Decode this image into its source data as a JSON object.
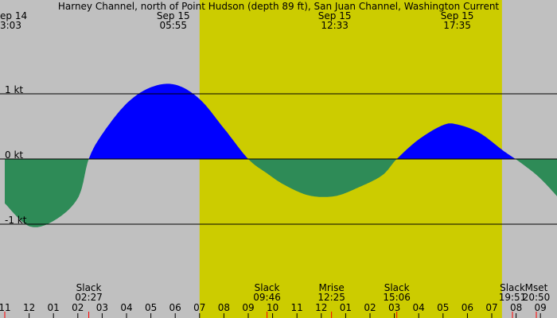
{
  "chart_data": {
    "type": "area",
    "title": "Harney Channel, north of Point Hudson (depth 89 ft), San Juan Channel, Washington Current",
    "xlabel": "",
    "ylabel": "",
    "unit": "kt",
    "x_unit": "hours since Sep 14 11:00",
    "xlim": [
      0,
      22.87
    ],
    "ylim": [
      -2.2,
      1.6
    ],
    "daylight": [
      8.0,
      20.42
    ],
    "y_ticks": [
      {
        "value": 1,
        "label": "1 kt"
      },
      {
        "value": 0,
        "label": "0 kt"
      },
      {
        "value": -1,
        "label": "-1 kt"
      }
    ],
    "x_ticks": [
      "11",
      "12",
      "01",
      "02",
      "03",
      "04",
      "05",
      "06",
      "07",
      "08",
      "09",
      "10",
      "11",
      "12",
      "01",
      "02",
      "03",
      "04",
      "05",
      "06",
      "07",
      "08",
      "09"
    ],
    "series": [
      {
        "x": [
          0,
          1.0,
          2.0,
          3.0,
          3.45,
          4.0,
          5.0,
          6.0,
          7.0,
          8.0,
          9.0,
          10.0,
          10.77,
          11.5,
          12.5,
          13.55,
          14.5,
          15.5,
          16.1,
          17.0,
          18.0,
          18.58,
          19.5,
          20.5,
          21.2,
          22.0,
          22.87
        ],
        "y": [
          -0.68,
          -1.03,
          -0.95,
          -0.6,
          0.0,
          0.38,
          0.85,
          1.1,
          1.14,
          0.92,
          0.47,
          0.0,
          -0.22,
          -0.4,
          -0.56,
          -0.57,
          -0.44,
          -0.25,
          0.0,
          0.3,
          0.52,
          0.53,
          0.4,
          0.12,
          -0.06,
          -0.3,
          -0.65
        ]
      }
    ],
    "top_labels": [
      {
        "line1": "ep 14",
        "line2": "3:03",
        "x": 0,
        "anchor": "start"
      },
      {
        "line1": "Sep 15",
        "line2": "05:55",
        "x": 6.92
      },
      {
        "line1": "Sep 15",
        "line2": "12:33",
        "x": 13.55
      },
      {
        "line1": "Sep 15",
        "line2": "17:35",
        "x": 18.58
      }
    ],
    "bottom_labels": [
      {
        "line1": "Slack",
        "line2": "02:27",
        "x": 3.45
      },
      {
        "line1": "Slack",
        "line2": "09:46",
        "x": 10.77
      },
      {
        "line1": "Mrise",
        "line2": "12:25",
        "x": 13.42
      },
      {
        "line1": "Slack",
        "line2": "15:06",
        "x": 16.1
      },
      {
        "line1": "Slack",
        "line2": "19:51",
        "x": 20.85
      },
      {
        "line1": "Mset",
        "line2": "20:50",
        "x": 21.83
      }
    ],
    "event_marks": [
      0,
      3.45,
      10.77,
      13.42,
      16.1,
      20.85,
      21.83
    ]
  }
}
